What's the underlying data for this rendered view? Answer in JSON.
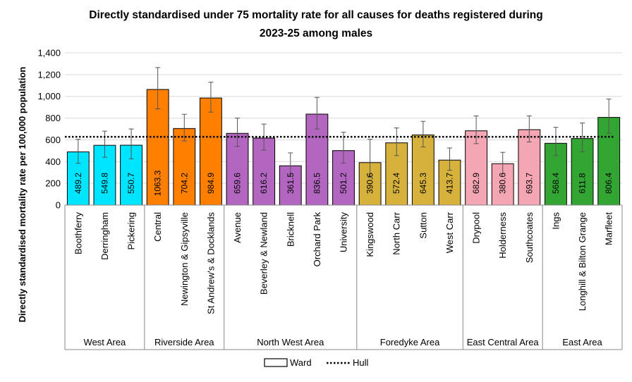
{
  "chart_data": {
    "type": "bar",
    "title_line1": "Directly standardised under 75 mortality rate for all causes for deaths registered during",
    "title_line2": "2023-25 among males",
    "ylabel": "Directly standardised mortality rate per 100,000 population",
    "ylim": [
      0,
      1400
    ],
    "yticks": [
      "0",
      "200",
      "400",
      "600",
      "800",
      "1,000",
      "1,200",
      "1,400"
    ],
    "grid": true,
    "hull_value": 628,
    "legend": {
      "placement": "bottom",
      "ward_label": "Ward",
      "hull_label": "Hull"
    },
    "groups": [
      {
        "name": "West Area",
        "color": "#00E5FF"
      },
      {
        "name": "Riverside Area",
        "color": "#FF8000"
      },
      {
        "name": "North West Area",
        "color": "#B266C0"
      },
      {
        "name": "Foredyke Area",
        "color": "#D6B23C"
      },
      {
        "name": "East Central Area",
        "color": "#F4A6B4"
      },
      {
        "name": "East Area",
        "color": "#33A532"
      }
    ],
    "bars": [
      {
        "name": "Boothferry",
        "group": 0,
        "value": 489.2,
        "label": "489.2",
        "lo": 385,
        "hi": 605
      },
      {
        "name": "Derringham",
        "group": 0,
        "value": 549.8,
        "label": "549.8",
        "lo": 440,
        "hi": 680
      },
      {
        "name": "Pickering",
        "group": 0,
        "value": 550.7,
        "label": "550.7",
        "lo": 425,
        "hi": 700
      },
      {
        "name": "Central",
        "group": 1,
        "value": 1063.3,
        "label": "1063.3",
        "lo": 885,
        "hi": 1265
      },
      {
        "name": "Newington & Gipsyville",
        "group": 1,
        "value": 704.2,
        "label": "704.2",
        "lo": 590,
        "hi": 835
      },
      {
        "name": "St Andrew's & Docklands",
        "group": 1,
        "value": 984.9,
        "label": "984.9",
        "lo": 855,
        "hi": 1130
      },
      {
        "name": "Avenue",
        "group": 2,
        "value": 659.6,
        "label": "659.6",
        "lo": 540,
        "hi": 800
      },
      {
        "name": "Beverley & Newland",
        "group": 2,
        "value": 616.2,
        "label": "616.2",
        "lo": 505,
        "hi": 745
      },
      {
        "name": "Bricknell",
        "group": 2,
        "value": 361.5,
        "label": "361.5",
        "lo": 265,
        "hi": 480
      },
      {
        "name": "Orchard Park",
        "group": 2,
        "value": 836.5,
        "label": "836.5",
        "lo": 700,
        "hi": 990
      },
      {
        "name": "University",
        "group": 2,
        "value": 501.2,
        "label": "501.2",
        "lo": 385,
        "hi": 670
      },
      {
        "name": "Kingswood",
        "group": 3,
        "value": 390.6,
        "label": "390.6",
        "lo": 255,
        "hi": 605
      },
      {
        "name": "North Carr",
        "group": 3,
        "value": 572.4,
        "label": "572.4",
        "lo": 455,
        "hi": 710
      },
      {
        "name": "Sutton",
        "group": 3,
        "value": 645.3,
        "label": "645.3",
        "lo": 535,
        "hi": 770
      },
      {
        "name": "West Carr",
        "group": 3,
        "value": 413.7,
        "label": "413.7",
        "lo": 320,
        "hi": 525
      },
      {
        "name": "Drypool",
        "group": 4,
        "value": 682.9,
        "label": "682.9",
        "lo": 565,
        "hi": 820
      },
      {
        "name": "Holderness",
        "group": 4,
        "value": 380.6,
        "label": "380.6",
        "lo": 290,
        "hi": 485
      },
      {
        "name": "Southcoates",
        "group": 4,
        "value": 693.7,
        "label": "693.7",
        "lo": 580,
        "hi": 820
      },
      {
        "name": "Ings",
        "group": 5,
        "value": 568.4,
        "label": "568.4",
        "lo": 455,
        "hi": 715
      },
      {
        "name": "Longhill & Bilton Grange",
        "group": 5,
        "value": 611.8,
        "label": "611.8",
        "lo": 490,
        "hi": 755
      },
      {
        "name": "Marfleet",
        "group": 5,
        "value": 806.4,
        "label": "806.4",
        "lo": 660,
        "hi": 975
      }
    ]
  }
}
